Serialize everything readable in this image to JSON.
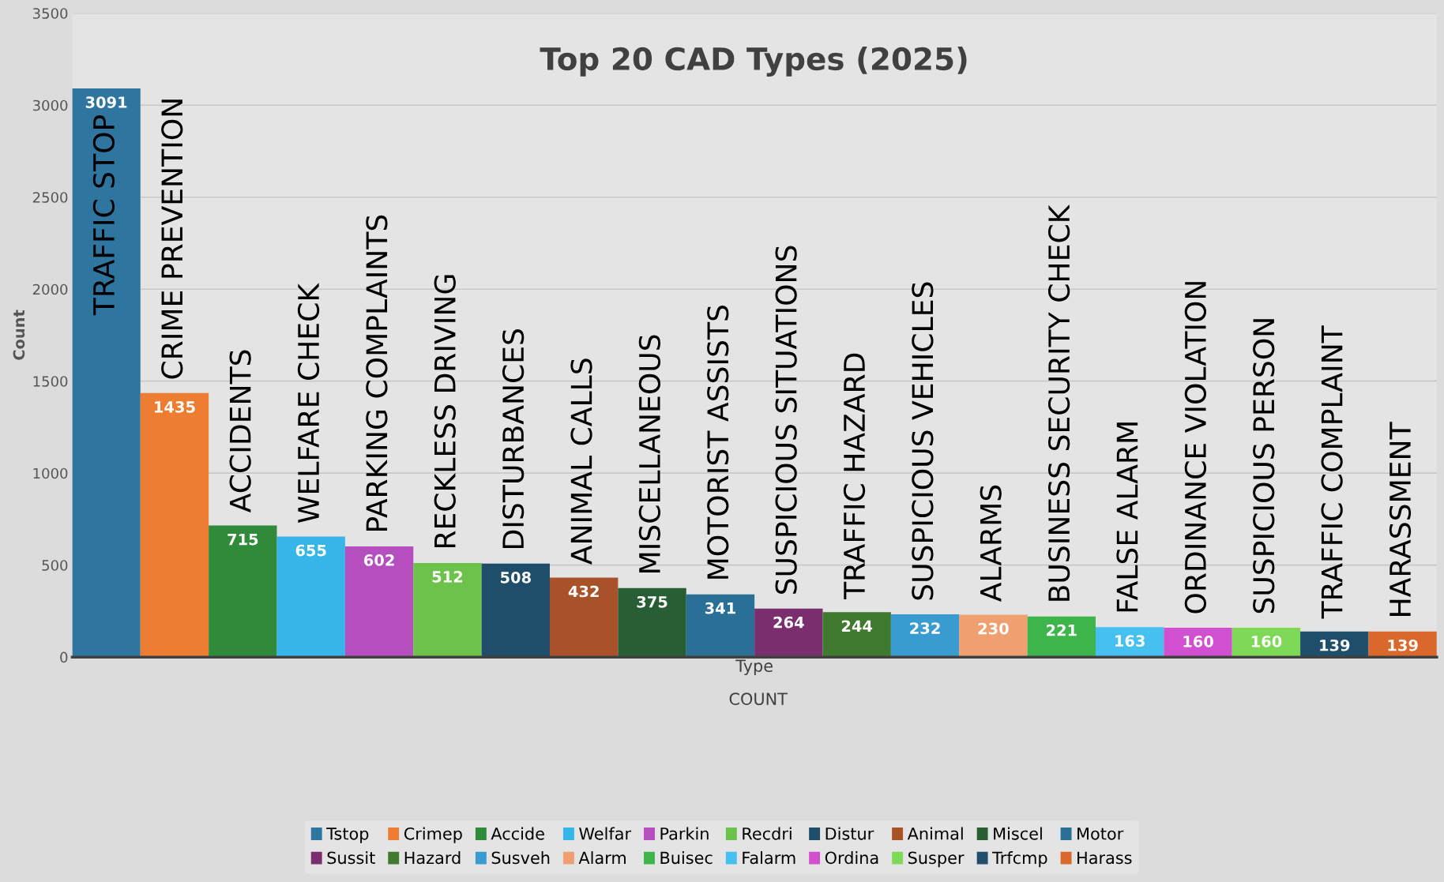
{
  "chart_data": {
    "type": "bar",
    "title": "Top 20 CAD Types (2025)",
    "xlabel": "Type",
    "ylabel": "Count",
    "annotations": [
      "COUNT"
    ],
    "categories": [
      "TRAFFIC STOP",
      "CRIME PREVENTION",
      "ACCIDENTS",
      "WELFARE CHECK",
      "PARKING COMPLAINTS",
      "RECKLESS DRIVING",
      "DISTURBANCES",
      "ANIMAL CALLS",
      "MISCELLANEOUS",
      "MOTORIST ASSISTS",
      "SUSPICIOUS SITUATIONS",
      "TRAFFIC HAZARD",
      "SUSPICIOUS VEHICLES",
      "ALARMS",
      "BUSINESS SECURITY CHECK",
      "FALSE ALARM",
      "ORDINANCE VIOLATION",
      "SUSPICIOUS PERSON",
      "TRAFFIC COMPLAINT",
      "HARASSMENT"
    ],
    "data_labels": true,
    "grid": "y",
    "legend": "bottom",
    "ylim": [
      0,
      3500
    ],
    "yticks": [
      0,
      500,
      1000,
      1500,
      2000,
      2500,
      3000,
      3500
    ],
    "series": [
      {
        "name": "Tstop",
        "color": "#2e75a0",
        "values": [
          3091,
          null,
          null,
          null,
          null,
          null,
          null,
          null,
          null,
          null,
          null,
          null,
          null,
          null,
          null,
          null,
          null,
          null,
          null,
          null
        ]
      },
      {
        "name": "Crimep",
        "color": "#ed7d31",
        "values": [
          null,
          1435,
          null,
          null,
          null,
          null,
          null,
          null,
          null,
          null,
          null,
          null,
          null,
          null,
          null,
          null,
          null,
          null,
          null,
          null
        ]
      },
      {
        "name": "Accide",
        "color": "#2f8a3a",
        "values": [
          null,
          null,
          715,
          null,
          null,
          null,
          null,
          null,
          null,
          null,
          null,
          null,
          null,
          null,
          null,
          null,
          null,
          null,
          null,
          null
        ]
      },
      {
        "name": "Welfar",
        "color": "#35b5e8",
        "values": [
          null,
          null,
          null,
          655,
          null,
          null,
          null,
          null,
          null,
          null,
          null,
          null,
          null,
          null,
          null,
          null,
          null,
          null,
          null,
          null
        ]
      },
      {
        "name": "Parkin",
        "color": "#b54fc0",
        "values": [
          null,
          null,
          null,
          null,
          602,
          null,
          null,
          null,
          null,
          null,
          null,
          null,
          null,
          null,
          null,
          null,
          null,
          null,
          null,
          null
        ]
      },
      {
        "name": "Recdri",
        "color": "#6cc24a",
        "values": [
          null,
          null,
          null,
          null,
          null,
          512,
          null,
          null,
          null,
          null,
          null,
          null,
          null,
          null,
          null,
          null,
          null,
          null,
          null,
          null
        ]
      },
      {
        "name": "Distur",
        "color": "#1f4e6b",
        "values": [
          null,
          null,
          null,
          null,
          null,
          null,
          508,
          null,
          null,
          null,
          null,
          null,
          null,
          null,
          null,
          null,
          null,
          null,
          null,
          null
        ]
      },
      {
        "name": "Animal",
        "color": "#a9522a",
        "values": [
          null,
          null,
          null,
          null,
          null,
          null,
          null,
          432,
          null,
          null,
          null,
          null,
          null,
          null,
          null,
          null,
          null,
          null,
          null,
          null
        ]
      },
      {
        "name": "Miscel",
        "color": "#285e34",
        "values": [
          null,
          null,
          null,
          null,
          null,
          null,
          null,
          null,
          375,
          null,
          null,
          null,
          null,
          null,
          null,
          null,
          null,
          null,
          null,
          null
        ]
      },
      {
        "name": "Motor",
        "color": "#2a6f95",
        "values": [
          null,
          null,
          null,
          null,
          null,
          null,
          null,
          null,
          null,
          341,
          null,
          null,
          null,
          null,
          null,
          null,
          null,
          null,
          null,
          null
        ]
      },
      {
        "name": "Sussit",
        "color": "#7a2e6e",
        "values": [
          null,
          null,
          null,
          null,
          null,
          null,
          null,
          null,
          null,
          null,
          264,
          null,
          null,
          null,
          null,
          null,
          null,
          null,
          null,
          null
        ]
      },
      {
        "name": "Hazard",
        "color": "#3f7a2e",
        "values": [
          null,
          null,
          null,
          null,
          null,
          null,
          null,
          null,
          null,
          null,
          null,
          244,
          null,
          null,
          null,
          null,
          null,
          null,
          null,
          null
        ]
      },
      {
        "name": "Susveh",
        "color": "#3a9bd0",
        "values": [
          null,
          null,
          null,
          null,
          null,
          null,
          null,
          null,
          null,
          null,
          null,
          null,
          232,
          null,
          null,
          null,
          null,
          null,
          null,
          null
        ]
      },
      {
        "name": "Alarm",
        "color": "#f0a070",
        "values": [
          null,
          null,
          null,
          null,
          null,
          null,
          null,
          null,
          null,
          null,
          null,
          null,
          null,
          230,
          null,
          null,
          null,
          null,
          null,
          null
        ]
      },
      {
        "name": "Buisec",
        "color": "#3db54a",
        "values": [
          null,
          null,
          null,
          null,
          null,
          null,
          null,
          null,
          null,
          null,
          null,
          null,
          null,
          null,
          221,
          null,
          null,
          null,
          null,
          null
        ]
      },
      {
        "name": "Falarm",
        "color": "#45c0f0",
        "values": [
          null,
          null,
          null,
          null,
          null,
          null,
          null,
          null,
          null,
          null,
          null,
          null,
          null,
          null,
          null,
          163,
          null,
          null,
          null,
          null
        ]
      },
      {
        "name": "Ordina",
        "color": "#d050d0",
        "values": [
          null,
          null,
          null,
          null,
          null,
          null,
          null,
          null,
          null,
          null,
          null,
          null,
          null,
          null,
          null,
          null,
          160,
          null,
          null,
          null
        ]
      },
      {
        "name": "Susper",
        "color": "#7ed957",
        "values": [
          null,
          null,
          null,
          null,
          null,
          null,
          null,
          null,
          null,
          null,
          null,
          null,
          null,
          null,
          null,
          null,
          null,
          160,
          null,
          null
        ]
      },
      {
        "name": "Trfcmp",
        "color": "#1f4e6b",
        "values": [
          null,
          null,
          null,
          null,
          null,
          null,
          null,
          null,
          null,
          null,
          null,
          null,
          null,
          null,
          null,
          null,
          null,
          null,
          139,
          null
        ]
      },
      {
        "name": "Harass",
        "color": "#d9682a",
        "values": [
          null,
          null,
          null,
          null,
          null,
          null,
          null,
          null,
          null,
          null,
          null,
          null,
          null,
          null,
          null,
          null,
          null,
          null,
          null,
          139
        ]
      }
    ]
  }
}
